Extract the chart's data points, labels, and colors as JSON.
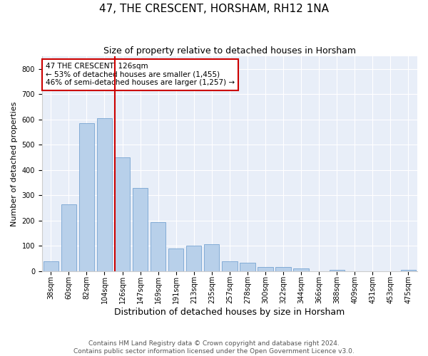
{
  "title": "47, THE CRESCENT, HORSHAM, RH12 1NA",
  "subtitle": "Size of property relative to detached houses in Horsham",
  "xlabel": "Distribution of detached houses by size in Horsham",
  "ylabel": "Number of detached properties",
  "categories": [
    "38sqm",
    "60sqm",
    "82sqm",
    "104sqm",
    "126sqm",
    "147sqm",
    "169sqm",
    "191sqm",
    "213sqm",
    "235sqm",
    "257sqm",
    "278sqm",
    "300sqm",
    "322sqm",
    "344sqm",
    "366sqm",
    "388sqm",
    "409sqm",
    "431sqm",
    "453sqm",
    "475sqm"
  ],
  "values": [
    38,
    265,
    585,
    605,
    450,
    330,
    195,
    90,
    100,
    105,
    38,
    32,
    15,
    15,
    10,
    0,
    5,
    0,
    0,
    0,
    5
  ],
  "bar_color": "#b8d0ea",
  "bar_edge_color": "#6699cc",
  "vline_color": "#cc0000",
  "annotation_box_color": "#cc0000",
  "background_color": "#e8eef8",
  "ylim": [
    0,
    850
  ],
  "yticks": [
    0,
    100,
    200,
    300,
    400,
    500,
    600,
    700,
    800
  ],
  "footer": "Contains HM Land Registry data © Crown copyright and database right 2024.\nContains public sector information licensed under the Open Government Licence v3.0.",
  "title_fontsize": 11,
  "subtitle_fontsize": 9,
  "xlabel_fontsize": 9,
  "ylabel_fontsize": 8,
  "tick_fontsize": 7,
  "annotation_fontsize": 7.5,
  "footer_fontsize": 6.5
}
